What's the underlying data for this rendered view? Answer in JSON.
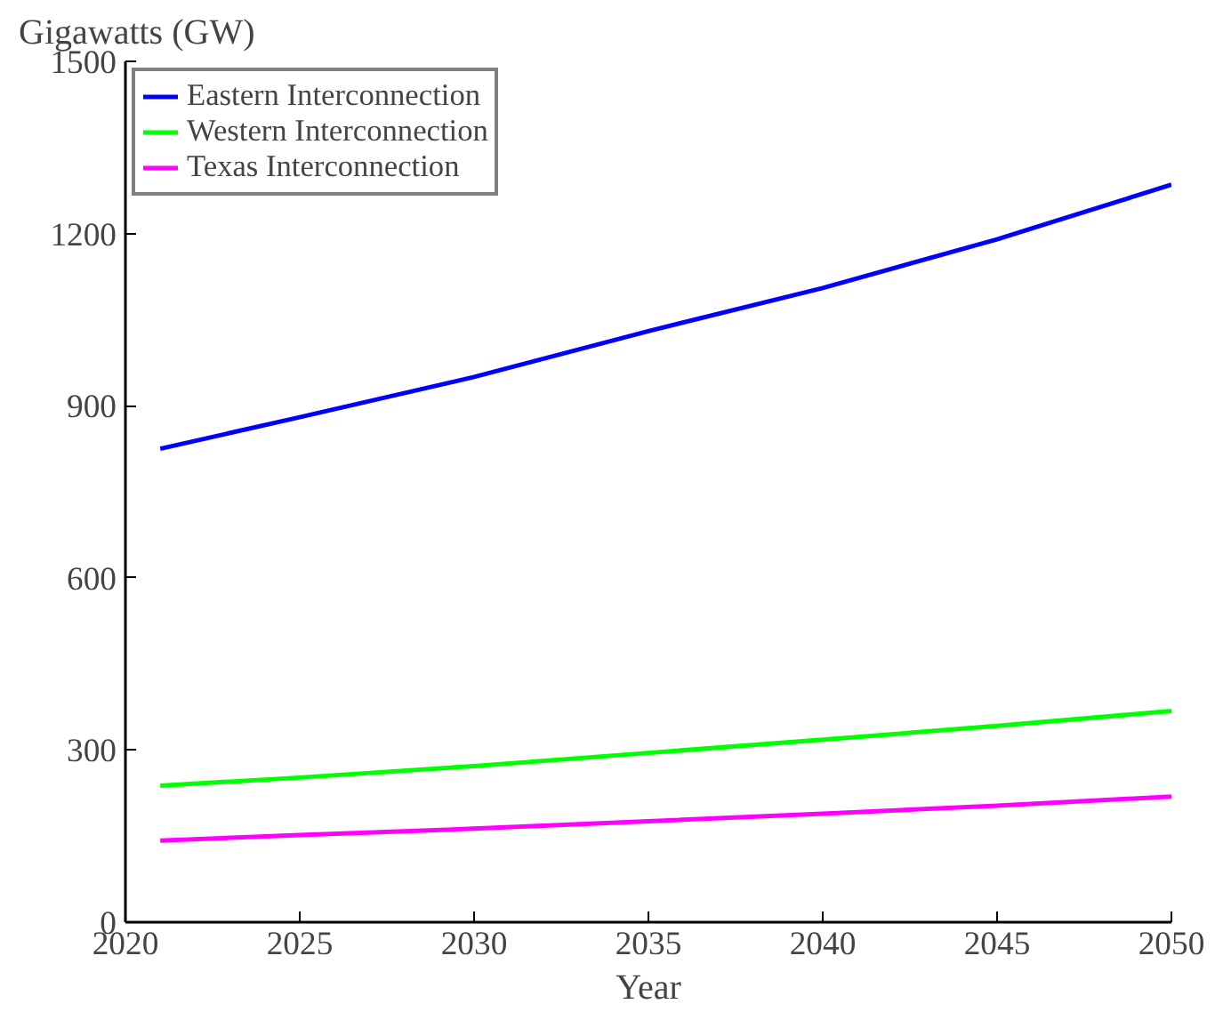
{
  "chart_data": {
    "type": "line",
    "xlabel": "Year",
    "ylabel": "Gigawatts (GW)",
    "x": [
      2021,
      2025,
      2030,
      2035,
      2040,
      2045,
      2050
    ],
    "series": [
      {
        "name": "Eastern Interconnection",
        "color": "#0000ff",
        "values": [
          825,
          880,
          950,
          1030,
          1105,
          1190,
          1285
        ]
      },
      {
        "name": "Western Interconnection",
        "color": "#00ff00",
        "values": [
          238,
          252,
          272,
          295,
          318,
          342,
          368
        ]
      },
      {
        "name": "Texas Interconnection",
        "color": "#ff00ff",
        "values": [
          142,
          152,
          163,
          176,
          189,
          203,
          219
        ]
      }
    ],
    "xlim": [
      2020,
      2050
    ],
    "ylim": [
      0,
      1500
    ],
    "xticks": [
      2020,
      2025,
      2030,
      2035,
      2040,
      2045,
      2050
    ],
    "yticks": [
      0,
      300,
      600,
      900,
      1200,
      1500
    ],
    "grid": false,
    "legend": "top left",
    "marker": "none",
    "line_style": "solid"
  }
}
